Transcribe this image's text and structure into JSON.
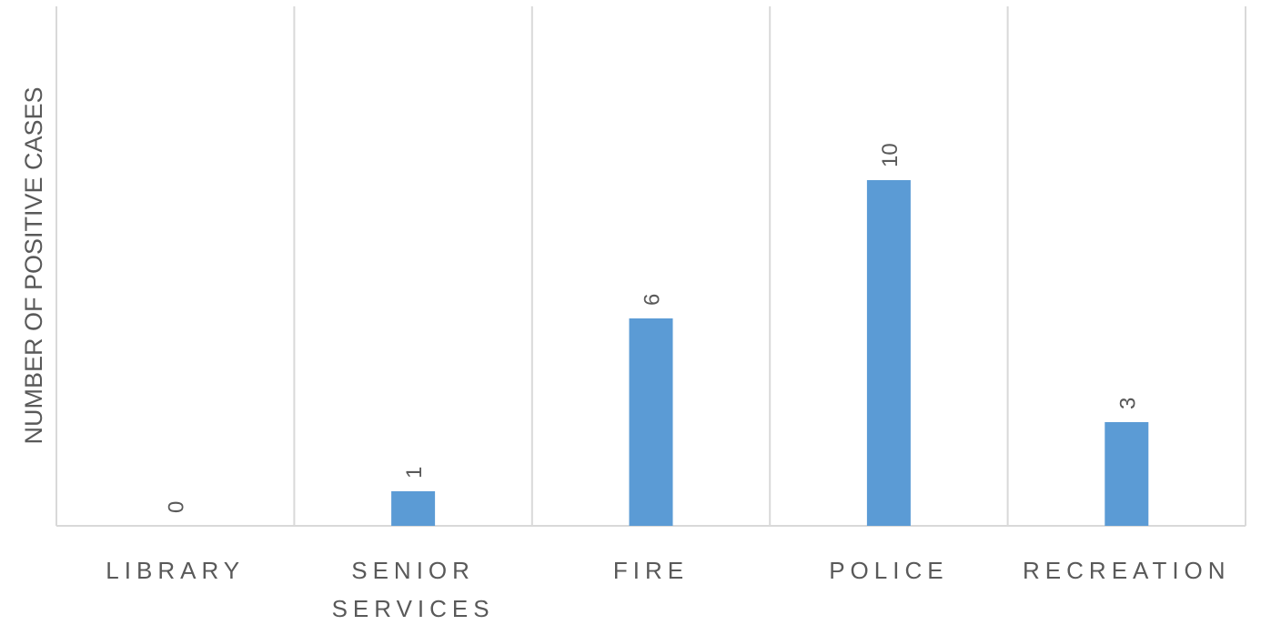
{
  "chart_data": {
    "type": "bar",
    "categories": [
      [
        "LIBRARY"
      ],
      [
        "SENIOR",
        "SERVICES"
      ],
      [
        "FIRE"
      ],
      [
        "POLICE"
      ],
      [
        "RECREATION"
      ]
    ],
    "values": [
      0,
      1,
      6,
      10,
      3
    ],
    "data_labels": [
      "0",
      "1",
      "6",
      "10",
      "3"
    ],
    "title": "",
    "xlabel": "",
    "ylabel": "NUMBER OF POSITIVE CASES",
    "ylim": [
      0,
      15
    ],
    "grid": "vertical category separators",
    "legend": "none",
    "data_label_orientation": "rotated",
    "colors": {
      "bar": "#5B9BD5",
      "grid": "#D9D9D9",
      "text": "#595959"
    }
  }
}
